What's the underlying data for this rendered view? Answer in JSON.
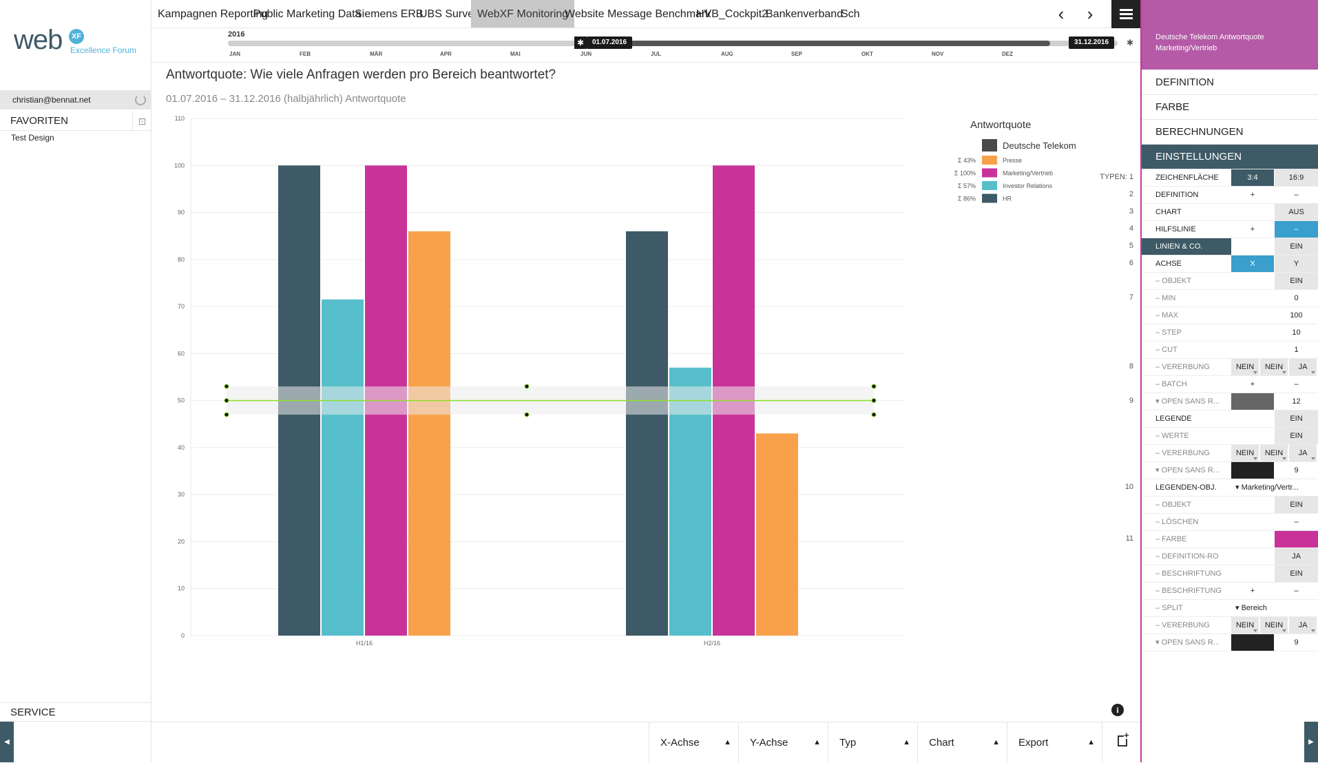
{
  "sidebar": {
    "logo_word": "web",
    "logo_badge": "XF",
    "logo_sub": "Excellence Forum",
    "user_email": "christian@bennat.net",
    "favorites_title": "FAVORITEN",
    "favorites": [
      "Test Design"
    ],
    "service_label": "SERVICE"
  },
  "tabs": [
    {
      "label": "Kampagnen Reporting",
      "active": false
    },
    {
      "label": "Public Marketing Data",
      "active": false
    },
    {
      "label": "Siemens ERB",
      "active": false
    },
    {
      "label": "UBS Survey",
      "active": false
    },
    {
      "label": "WebXF Monitoring",
      "active": true
    },
    {
      "label": "Website Message Benchmark",
      "active": false
    },
    {
      "label": "HVB_Cockpit2",
      "active": false
    },
    {
      "label": "Bankenverband",
      "active": false
    },
    {
      "label": "Sch",
      "active": false
    }
  ],
  "timeline": {
    "year": "2016",
    "start_label": "01.07.2016",
    "end_label": "31.12.2016",
    "months": [
      "JAN",
      "FEB",
      "MÄR",
      "APR",
      "MAI",
      "JUN",
      "JUL",
      "AUG",
      "SEP",
      "OKT",
      "NOV",
      "DEZ"
    ]
  },
  "page": {
    "title": "Antwortquote: Wie viele Anfragen werden pro Bereich beantwortet?",
    "subtitle": "01.07.2016 – 31.12.2016 (halbjährlich) Antwortquote"
  },
  "chart_data": {
    "type": "bar",
    "categories": [
      "H1/16",
      "H2/16"
    ],
    "ylim": [
      0,
      110
    ],
    "yticks": [
      0,
      10,
      20,
      30,
      40,
      50,
      60,
      70,
      80,
      90,
      100,
      110
    ],
    "legend_title": "Antwortquote",
    "legend_group": "Deutsche Telekom",
    "series": [
      {
        "name": "HR",
        "color": "#3d5a66",
        "sum": "Σ 86%",
        "values": [
          100,
          86
        ]
      },
      {
        "name": "Investor Relations",
        "color": "#56bfcb",
        "sum": "Σ 57%",
        "values": [
          71.5,
          57
        ]
      },
      {
        "name": "Marketing/Vertrieb",
        "color": "#c93399",
        "sum": "Σ 100%",
        "values": [
          100,
          100
        ]
      },
      {
        "name": "Presse",
        "color": "#f9a14a",
        "sum": "Σ 43%",
        "values": [
          86,
          43
        ]
      }
    ],
    "legend_order": [
      "Presse",
      "Marketing/Vertrieb",
      "Investor Relations",
      "HR"
    ],
    "helper_line": 50,
    "helper_band": [
      47,
      53
    ]
  },
  "types_label": "TYPEN: 1",
  "row_numbers": [
    {
      "n": "TYPEN: 1",
      "row": 0
    },
    {
      "n": "2",
      "row": 1
    },
    {
      "n": "3",
      "row": 2
    },
    {
      "n": "4",
      "row": 3
    },
    {
      "n": "5",
      "row": 4
    },
    {
      "n": "6",
      "row": 5
    },
    {
      "n": "7",
      "row": 7
    },
    {
      "n": "8",
      "row": 11
    },
    {
      "n": "9",
      "row": 13
    },
    {
      "n": "10",
      "row": 18
    },
    {
      "n": "11",
      "row": 21
    }
  ],
  "bottom_bar": [
    "X-Achse",
    "Y-Achse",
    "Typ",
    "Chart",
    "Export"
  ],
  "right_panel": {
    "header": "Deutsche Telekom Antwortquote Marketing/Vertrieb",
    "sections": [
      "DEFINITION",
      "FARBE",
      "BERECHNUNGEN",
      "EINSTELLUNGEN"
    ],
    "rows": [
      {
        "label": "ZEICHENFLÄCHE",
        "cells": [
          {
            "t": "3:4",
            "bg": "#3d5a66",
            "fg": "#fff"
          },
          {
            "t": "16:9",
            "bg": "#e6e6e6"
          }
        ]
      },
      {
        "label": "DEFINITION",
        "cells": [
          {
            "t": "+",
            "bg": "#fff"
          },
          {
            "t": "–",
            "bg": "#fff"
          }
        ]
      },
      {
        "label": "CHART",
        "cells": [
          {
            "t": "",
            "bg": "#fff"
          },
          {
            "t": "AUS",
            "bg": "#e6e6e6"
          }
        ]
      },
      {
        "label": "HILFSLINIE",
        "cells": [
          {
            "t": "+",
            "bg": "#fff"
          },
          {
            "t": "–",
            "bg": "#3a9fcc",
            "fg": "#fff"
          }
        ]
      },
      {
        "label": "LINIEN & CO.",
        "sel": true,
        "cells": [
          {
            "t": "",
            "bg": "#fff"
          },
          {
            "t": "EIN",
            "bg": "#e6e6e6"
          }
        ]
      },
      {
        "label": "ACHSE",
        "cells": [
          {
            "t": "X",
            "bg": "#3a9fcc",
            "fg": "#fff"
          },
          {
            "t": "Y",
            "bg": "#e6e6e6"
          }
        ]
      },
      {
        "label": "– OBJEKT",
        "sub": true,
        "cells": [
          {
            "t": "",
            "bg": "#fff"
          },
          {
            "t": "EIN",
            "bg": "#e6e6e6"
          }
        ]
      },
      {
        "label": "– MIN",
        "sub": true,
        "cells": [
          {
            "t": "",
            "bg": "#fff"
          },
          {
            "t": "0",
            "bg": "#fff"
          }
        ]
      },
      {
        "label": "– MAX",
        "sub": true,
        "cells": [
          {
            "t": "",
            "bg": "#fff"
          },
          {
            "t": "100",
            "bg": "#fff"
          }
        ]
      },
      {
        "label": "– STEP",
        "sub": true,
        "cells": [
          {
            "t": "",
            "bg": "#fff"
          },
          {
            "t": "10",
            "bg": "#fff"
          }
        ]
      },
      {
        "label": "– CUT",
        "sub": true,
        "cells": [
          {
            "t": "",
            "bg": "#fff"
          },
          {
            "t": "1",
            "bg": "#fff"
          }
        ]
      },
      {
        "label": "– VERERBUNG",
        "sub": true,
        "triple": [
          "NEIN",
          "NEIN",
          "JA"
        ]
      },
      {
        "label": "– BATCH",
        "sub": true,
        "cells": [
          {
            "t": "+",
            "bg": "#fff"
          },
          {
            "t": "–",
            "bg": "#fff"
          }
        ]
      },
      {
        "label": "▾ OPEN SANS R...",
        "sub": true,
        "cells": [
          {
            "t": "",
            "bg": "#666"
          },
          {
            "t": "12",
            "bg": "#fff"
          }
        ]
      },
      {
        "label": "LEGENDE",
        "cells": [
          {
            "t": "",
            "bg": "#fff"
          },
          {
            "t": "EIN",
            "bg": "#e6e6e6"
          }
        ]
      },
      {
        "label": "– WERTE",
        "sub": true,
        "cells": [
          {
            "t": "",
            "bg": "#fff"
          },
          {
            "t": "EIN",
            "bg": "#e6e6e6"
          }
        ]
      },
      {
        "label": "– VERERBUNG",
        "sub": true,
        "triple": [
          "NEIN",
          "NEIN",
          "JA"
        ]
      },
      {
        "label": "▾ OPEN SANS R...",
        "sub": true,
        "cells": [
          {
            "t": "",
            "bg": "#222"
          },
          {
            "t": "9",
            "bg": "#fff"
          }
        ]
      },
      {
        "label": "LEGENDEN-OBJ.",
        "wide": "▾  Marketing/Vertr..."
      },
      {
        "label": "– OBJEKT",
        "sub": true,
        "cells": [
          {
            "t": "",
            "bg": "#fff"
          },
          {
            "t": "EIN",
            "bg": "#e6e6e6"
          }
        ]
      },
      {
        "label": "– LÖSCHEN",
        "sub": true,
        "cells": [
          {
            "t": "",
            "bg": "#fff"
          },
          {
            "t": "–",
            "bg": "#fff"
          }
        ]
      },
      {
        "label": "– FARBE",
        "sub": true,
        "cells": [
          {
            "t": "",
            "bg": "#fff"
          },
          {
            "t": "",
            "bg": "#c93399"
          }
        ]
      },
      {
        "label": "– DEFINITION-RO",
        "sub": true,
        "cells": [
          {
            "t": "",
            "bg": "#fff"
          },
          {
            "t": "JA",
            "bg": "#e6e6e6"
          }
        ]
      },
      {
        "label": "– BESCHRIFTUNG",
        "sub": true,
        "cells": [
          {
            "t": "",
            "bg": "#fff"
          },
          {
            "t": "EIN",
            "bg": "#e6e6e6"
          }
        ]
      },
      {
        "label": "– BESCHRIFTUNG",
        "sub": true,
        "cells": [
          {
            "t": "+",
            "bg": "#fff"
          },
          {
            "t": "–",
            "bg": "#fff"
          }
        ]
      },
      {
        "label": "– SPLIT",
        "sub": true,
        "wide": "▾  Bereich"
      },
      {
        "label": "– VERERBUNG",
        "sub": true,
        "triple": [
          "NEIN",
          "NEIN",
          "JA"
        ]
      },
      {
        "label": "▾ OPEN SANS R...",
        "sub": true,
        "cells": [
          {
            "t": "",
            "bg": "#222"
          },
          {
            "t": "9",
            "bg": "#fff"
          }
        ]
      }
    ]
  }
}
